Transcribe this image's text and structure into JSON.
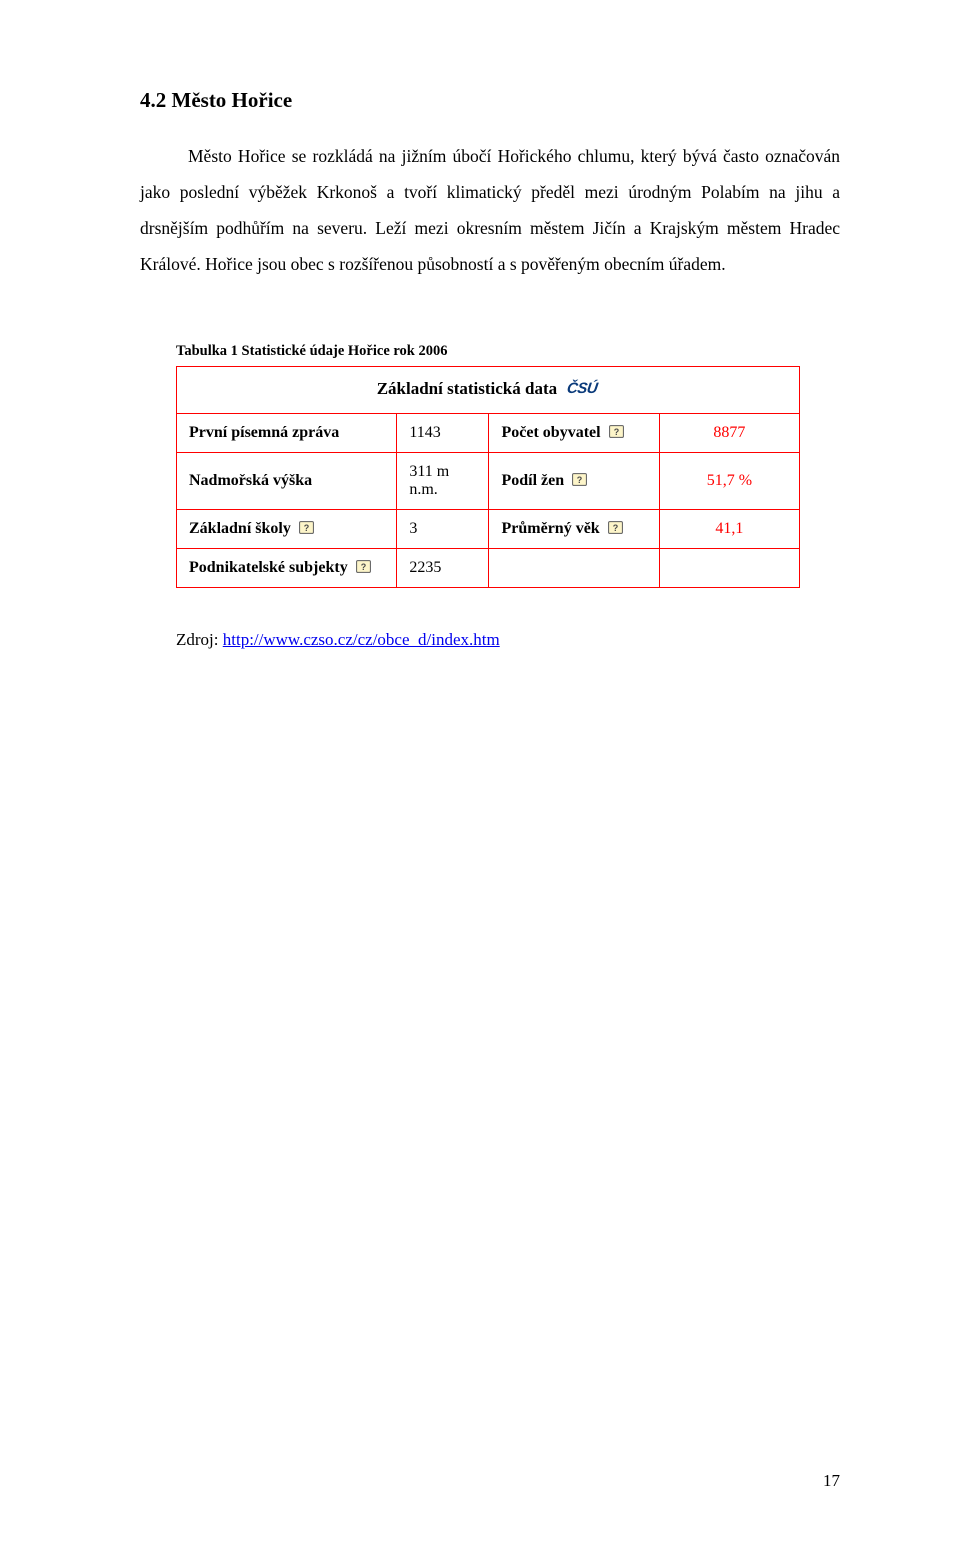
{
  "heading": "4.2  Město Hořice",
  "body_text": "Město Hořice se rozkládá na jižním úbočí Hořického chlumu, který bývá často označován jako poslední výběžek Krkonoš a tvoří klimatický předěl mezi úrodným Polabím na jihu a drsnějším podhůřím na severu. Leží mezi okresním městem Jičín a Krajským městem Hradec Králové. Hořice jsou obec s rozšířenou působností a s pověřeným obecním úřadem.",
  "table": {
    "caption": "Tabulka 1  Statistické údaje Hořice rok 2006",
    "title": "Základní statistická data",
    "logo_text": "ČSÚ",
    "rows": [
      {
        "label1": "První písemná zpráva",
        "val1": "1143",
        "label2": "Počet obyvatel",
        "val2": "8877",
        "help1": false,
        "help2": true
      },
      {
        "label1": "Nadmořská výška",
        "val1": "311 m n.m.",
        "label2": "Podíl žen",
        "val2": "51,7 %",
        "help1": false,
        "help2": true
      },
      {
        "label1": "Základní školy",
        "val1": "3",
        "label2": "Průměrný věk",
        "val2": "41,1",
        "help1": true,
        "help2": true
      },
      {
        "label1": "Podnikatelské subjekty",
        "val1": "2235",
        "label2": "",
        "val2": "",
        "help1": true,
        "help2": false
      }
    ],
    "help_icon_colors": {
      "border": "#5a5a5a",
      "fill": "#fdf5c9",
      "question": "#4a4a4a"
    }
  },
  "source": {
    "prefix": "Zdroj: ",
    "url_text": "http://www.czso.cz/cz/obce_d/index.htm"
  },
  "page_number": "17"
}
